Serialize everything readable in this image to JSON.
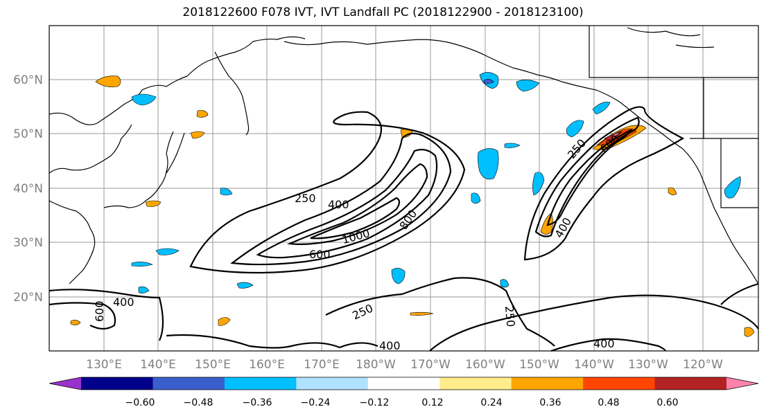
{
  "title": "2018122600 F078 IVT, IVT Landfall PC (2018122900 - 2018123100)",
  "map": {
    "lon_labels": [
      "130°E",
      "140°E",
      "150°E",
      "160°E",
      "170°E",
      "180°W",
      "170°W",
      "160°W",
      "150°W",
      "140°W",
      "130°W",
      "120°W"
    ],
    "lat_labels": [
      "20°N",
      "30°N",
      "40°N",
      "50°N",
      "60°N"
    ],
    "contour_labels": {
      "c250_west": "250",
      "c400_west": "400",
      "c600_west": "600",
      "c800_west": "800",
      "c1000_west": "1000",
      "c250_east": "250",
      "c600_east": "600",
      "c400_east": "400",
      "c400_sw": "400",
      "c600_sw": "600",
      "c250_south": "250",
      "c250_mid": "250",
      "c400_bottom": "400",
      "c400_bottom_east": "400"
    }
  },
  "colorbar": {
    "colors": [
      "#9932cc",
      "#00008b",
      "#3a5fcd",
      "#00bfff",
      "#b0e2ff",
      "#ffffff",
      "#ffec8b",
      "#ffa500",
      "#ff4500",
      "#b22222",
      "#ff82ab"
    ],
    "tick_labels": [
      "−0.60",
      "−0.48",
      "−0.36",
      "−0.24",
      "−0.12",
      "0.12",
      "0.24",
      "0.36",
      "0.48",
      "0.60"
    ]
  }
}
